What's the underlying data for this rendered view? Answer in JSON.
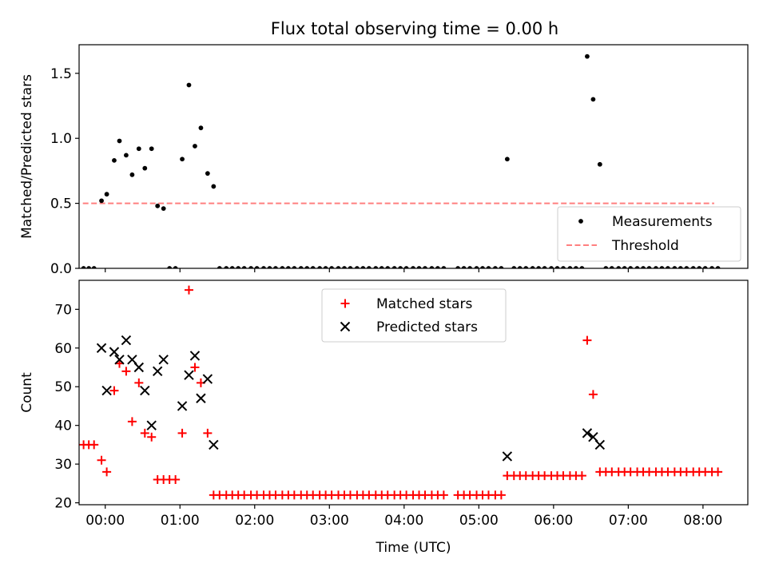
{
  "title": "Flux total observing time = 0.00 h",
  "colors": {
    "measurement": "#000000",
    "threshold": "#ff7f7f",
    "matched": "#ff0000",
    "predicted": "#000000",
    "axes": "#000000",
    "background": "#ffffff"
  },
  "chart_data": [
    {
      "type": "scatter",
      "ylabel": "Matched/Predicted stars",
      "xlim_hours": [
        -0.35,
        8.6
      ],
      "ylim": [
        0,
        1.72
      ],
      "yticks": [
        0.0,
        0.5,
        1.0,
        1.5
      ],
      "ytick_labels": [
        "0.0",
        "0.5",
        "1.0",
        "1.5"
      ],
      "grid": false,
      "legend": {
        "location": "lower-right",
        "entries": [
          "Measurements",
          "Threshold"
        ]
      },
      "threshold": {
        "name": "Threshold",
        "value": 0.5,
        "x_range_hours": [
          -0.3,
          8.15
        ]
      },
      "series": [
        {
          "name": "Measurements",
          "marker": "dot",
          "points": [
            [
              -0.29,
              0
            ],
            [
              -0.22,
              0
            ],
            [
              -0.15,
              0
            ],
            [
              -0.05,
              0.52
            ],
            [
              0.02,
              0.57
            ],
            [
              0.12,
              0.83
            ],
            [
              0.19,
              0.98
            ],
            [
              0.28,
              0.87
            ],
            [
              0.36,
              0.72
            ],
            [
              0.45,
              0.92
            ],
            [
              0.53,
              0.77
            ],
            [
              0.62,
              0.92
            ],
            [
              0.7,
              0.48
            ],
            [
              0.78,
              0.46
            ],
            [
              0.86,
              0
            ],
            [
              0.94,
              0
            ],
            [
              1.03,
              0.84
            ],
            [
              1.12,
              1.41
            ],
            [
              1.2,
              0.94
            ],
            [
              1.28,
              1.08
            ],
            [
              1.37,
              0.73
            ],
            [
              1.45,
              0.63
            ],
            [
              1.53,
              0
            ],
            [
              1.62,
              0
            ],
            [
              1.7,
              0
            ],
            [
              1.78,
              0
            ],
            [
              1.86,
              0
            ],
            [
              1.95,
              0
            ],
            [
              2.03,
              0
            ],
            [
              2.12,
              0
            ],
            [
              2.2,
              0
            ],
            [
              2.28,
              0
            ],
            [
              2.37,
              0
            ],
            [
              2.45,
              0
            ],
            [
              2.53,
              0
            ],
            [
              2.62,
              0
            ],
            [
              2.7,
              0
            ],
            [
              2.78,
              0
            ],
            [
              2.87,
              0
            ],
            [
              2.95,
              0
            ],
            [
              3.03,
              0
            ],
            [
              3.12,
              0
            ],
            [
              3.2,
              0
            ],
            [
              3.28,
              0
            ],
            [
              3.37,
              0
            ],
            [
              3.45,
              0
            ],
            [
              3.53,
              0
            ],
            [
              3.62,
              0
            ],
            [
              3.7,
              0
            ],
            [
              3.78,
              0
            ],
            [
              3.87,
              0
            ],
            [
              3.95,
              0
            ],
            [
              4.03,
              0
            ],
            [
              4.12,
              0
            ],
            [
              4.2,
              0
            ],
            [
              4.28,
              0
            ],
            [
              4.37,
              0
            ],
            [
              4.45,
              0
            ],
            [
              4.53,
              0
            ],
            [
              4.72,
              0
            ],
            [
              4.8,
              0
            ],
            [
              4.88,
              0
            ],
            [
              4.97,
              0
            ],
            [
              5.05,
              0
            ],
            [
              5.13,
              0
            ],
            [
              5.22,
              0
            ],
            [
              5.3,
              0
            ],
            [
              5.38,
              0.84
            ],
            [
              5.47,
              0
            ],
            [
              5.55,
              0
            ],
            [
              5.63,
              0
            ],
            [
              5.72,
              0
            ],
            [
              5.8,
              0
            ],
            [
              5.88,
              0
            ],
            [
              5.97,
              0
            ],
            [
              6.05,
              0
            ],
            [
              6.13,
              0
            ],
            [
              6.22,
              0
            ],
            [
              6.3,
              0
            ],
            [
              6.38,
              0
            ],
            [
              6.45,
              1.63
            ],
            [
              6.53,
              1.3
            ],
            [
              6.62,
              0.8
            ],
            [
              6.7,
              0
            ],
            [
              6.78,
              0
            ],
            [
              6.87,
              0
            ],
            [
              6.95,
              0
            ],
            [
              7.03,
              0
            ],
            [
              7.12,
              0
            ],
            [
              7.2,
              0
            ],
            [
              7.28,
              0
            ],
            [
              7.37,
              0
            ],
            [
              7.45,
              0
            ],
            [
              7.53,
              0
            ],
            [
              7.62,
              0
            ],
            [
              7.7,
              0
            ],
            [
              7.78,
              0
            ],
            [
              7.87,
              0
            ],
            [
              7.95,
              0
            ],
            [
              8.03,
              0
            ],
            [
              8.12,
              0
            ],
            [
              8.2,
              0
            ]
          ]
        }
      ]
    },
    {
      "type": "scatter",
      "xlabel": "Time (UTC)",
      "ylabel": "Count",
      "xlim_hours": [
        -0.35,
        8.6
      ],
      "ylim": [
        19.5,
        77.5
      ],
      "xticks_hours": [
        0,
        1,
        2,
        3,
        4,
        5,
        6,
        7,
        8
      ],
      "xtick_labels": [
        "00:00",
        "01:00",
        "02:00",
        "03:00",
        "04:00",
        "05:00",
        "06:00",
        "07:00",
        "08:00"
      ],
      "yticks": [
        20,
        30,
        40,
        50,
        60,
        70
      ],
      "ytick_labels": [
        "20",
        "30",
        "40",
        "50",
        "60",
        "70"
      ],
      "grid": false,
      "legend": {
        "location": "upper-center",
        "entries": [
          "Matched stars",
          "Predicted stars"
        ]
      },
      "series": [
        {
          "name": "Matched stars",
          "marker": "plus",
          "points": [
            [
              -0.29,
              35
            ],
            [
              -0.22,
              35
            ],
            [
              -0.15,
              35
            ],
            [
              -0.05,
              31
            ],
            [
              0.02,
              28
            ],
            [
              0.12,
              49
            ],
            [
              0.19,
              56
            ],
            [
              0.28,
              54
            ],
            [
              0.36,
              41
            ],
            [
              0.45,
              51
            ],
            [
              0.53,
              38
            ],
            [
              0.62,
              37
            ],
            [
              0.7,
              26
            ],
            [
              0.78,
              26
            ],
            [
              0.86,
              26
            ],
            [
              0.94,
              26
            ],
            [
              1.03,
              38
            ],
            [
              1.12,
              75
            ],
            [
              1.2,
              55
            ],
            [
              1.28,
              51
            ],
            [
              1.37,
              38
            ],
            [
              1.45,
              22
            ],
            [
              1.53,
              22
            ],
            [
              1.62,
              22
            ],
            [
              1.7,
              22
            ],
            [
              1.78,
              22
            ],
            [
              1.86,
              22
            ],
            [
              1.95,
              22
            ],
            [
              2.03,
              22
            ],
            [
              2.12,
              22
            ],
            [
              2.2,
              22
            ],
            [
              2.28,
              22
            ],
            [
              2.37,
              22
            ],
            [
              2.45,
              22
            ],
            [
              2.53,
              22
            ],
            [
              2.62,
              22
            ],
            [
              2.7,
              22
            ],
            [
              2.78,
              22
            ],
            [
              2.87,
              22
            ],
            [
              2.95,
              22
            ],
            [
              3.03,
              22
            ],
            [
              3.12,
              22
            ],
            [
              3.2,
              22
            ],
            [
              3.28,
              22
            ],
            [
              3.37,
              22
            ],
            [
              3.45,
              22
            ],
            [
              3.53,
              22
            ],
            [
              3.62,
              22
            ],
            [
              3.7,
              22
            ],
            [
              3.78,
              22
            ],
            [
              3.87,
              22
            ],
            [
              3.95,
              22
            ],
            [
              4.03,
              22
            ],
            [
              4.12,
              22
            ],
            [
              4.2,
              22
            ],
            [
              4.28,
              22
            ],
            [
              4.37,
              22
            ],
            [
              4.45,
              22
            ],
            [
              4.53,
              22
            ],
            [
              4.72,
              22
            ],
            [
              4.8,
              22
            ],
            [
              4.88,
              22
            ],
            [
              4.97,
              22
            ],
            [
              5.05,
              22
            ],
            [
              5.13,
              22
            ],
            [
              5.22,
              22
            ],
            [
              5.3,
              22
            ],
            [
              5.38,
              27
            ],
            [
              5.47,
              27
            ],
            [
              5.55,
              27
            ],
            [
              5.63,
              27
            ],
            [
              5.72,
              27
            ],
            [
              5.8,
              27
            ],
            [
              5.88,
              27
            ],
            [
              5.97,
              27
            ],
            [
              6.05,
              27
            ],
            [
              6.13,
              27
            ],
            [
              6.22,
              27
            ],
            [
              6.3,
              27
            ],
            [
              6.38,
              27
            ],
            [
              6.45,
              62
            ],
            [
              6.53,
              48
            ],
            [
              6.62,
              28
            ],
            [
              6.7,
              28
            ],
            [
              6.78,
              28
            ],
            [
              6.87,
              28
            ],
            [
              6.95,
              28
            ],
            [
              7.03,
              28
            ],
            [
              7.12,
              28
            ],
            [
              7.2,
              28
            ],
            [
              7.28,
              28
            ],
            [
              7.37,
              28
            ],
            [
              7.45,
              28
            ],
            [
              7.53,
              28
            ],
            [
              7.62,
              28
            ],
            [
              7.7,
              28
            ],
            [
              7.78,
              28
            ],
            [
              7.87,
              28
            ],
            [
              7.95,
              28
            ],
            [
              8.03,
              28
            ],
            [
              8.12,
              28
            ],
            [
              8.2,
              28
            ]
          ]
        },
        {
          "name": "Predicted stars",
          "marker": "x",
          "points": [
            [
              -0.05,
              60
            ],
            [
              0.02,
              49
            ],
            [
              0.12,
              59
            ],
            [
              0.19,
              57
            ],
            [
              0.28,
              62
            ],
            [
              0.36,
              57
            ],
            [
              0.45,
              55
            ],
            [
              0.53,
              49
            ],
            [
              0.62,
              40
            ],
            [
              0.7,
              54
            ],
            [
              0.78,
              57
            ],
            [
              1.03,
              45
            ],
            [
              1.12,
              53
            ],
            [
              1.2,
              58
            ],
            [
              1.28,
              47
            ],
            [
              1.37,
              52
            ],
            [
              1.45,
              35
            ],
            [
              5.38,
              32
            ],
            [
              6.45,
              38
            ],
            [
              6.53,
              37
            ],
            [
              6.62,
              35
            ]
          ]
        }
      ]
    }
  ]
}
